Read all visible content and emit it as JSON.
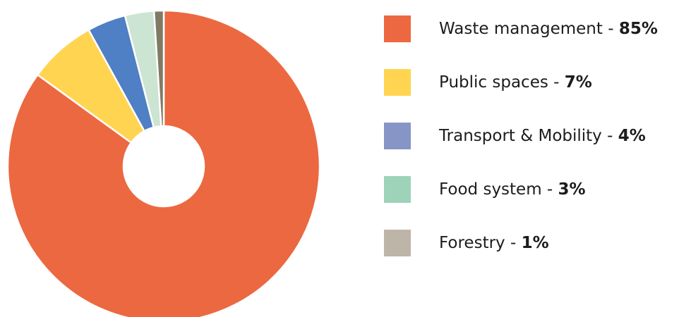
{
  "chart_data": {
    "type": "pie",
    "donut": true,
    "categories": [
      "Waste management",
      "Public spaces",
      "Transport & Mobility",
      "Food system",
      "Forestry"
    ],
    "values": [
      85,
      7,
      4,
      3,
      1
    ],
    "percent_labels": [
      "85%",
      "7%",
      "4%",
      "3%",
      "1%"
    ],
    "label_separator": " - ",
    "slice_colors": [
      "#EC6840",
      "#FFD451",
      "#4F7FC4",
      "#CCE4D2",
      "#7F7A64"
    ],
    "legend_colors": [
      "#EC6840",
      "#FFD451",
      "#8695C6",
      "#9DD3B8",
      "#BDB5A8"
    ],
    "start_angle_deg": 0,
    "direction": "clockwise",
    "legend_position": "right",
    "title": "",
    "xlabel": "",
    "ylabel": ""
  }
}
